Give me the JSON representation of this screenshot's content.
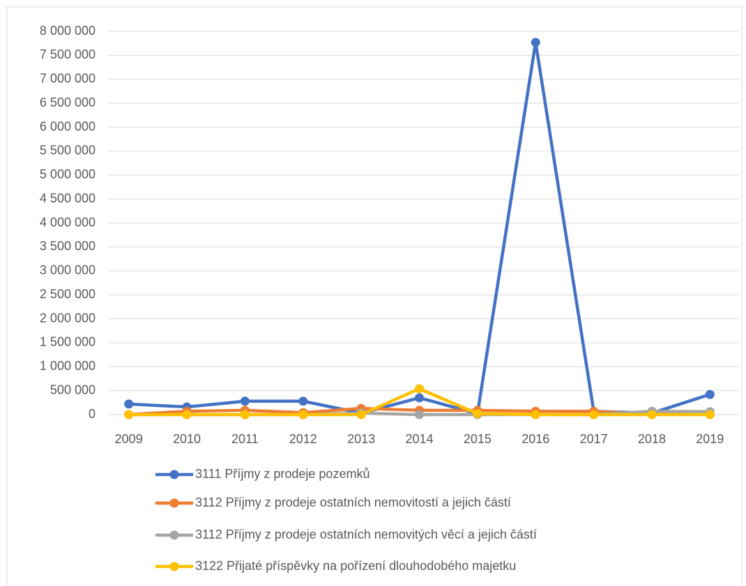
{
  "chart_data": {
    "type": "line",
    "categories": [
      "2009",
      "2010",
      "2011",
      "2012",
      "2013",
      "2014",
      "2015",
      "2016",
      "2017",
      "2018",
      "2019"
    ],
    "series": [
      {
        "name": "3111 Příjmy z prodeje pozemků",
        "color": "#4472c4",
        "values": [
          220000,
          160000,
          280000,
          280000,
          30000,
          350000,
          20000,
          7770000,
          70000,
          30000,
          420000
        ]
      },
      {
        "name": "3112 Příjmy z prodeje ostatních nemovitostí a jejich částí",
        "color": "#ed7d31",
        "values": [
          0,
          70000,
          90000,
          40000,
          130000,
          90000,
          90000,
          70000,
          70000,
          10000,
          10000
        ]
      },
      {
        "name": "3112 Příjmy z prodeje ostatních nemovitých věcí a jejich částí",
        "color": "#a5a5a5",
        "values": [
          0,
          0,
          0,
          0,
          30000,
          0,
          0,
          0,
          0,
          70000,
          60000
        ]
      },
      {
        "name": "3122 Přijaté příspěvky na pořízení dlouhodobého majetku",
        "color": "#ffc000",
        "values": [
          0,
          0,
          0,
          0,
          0,
          540000,
          20000,
          0,
          0,
          0,
          0
        ]
      }
    ],
    "ylim": [
      0,
      8000000
    ],
    "yticks": [
      0,
      {
        "value": 500000,
        "label": "500 000"
      },
      {
        "value": 1000000,
        "label": "1 000 000"
      },
      {
        "value": 1500000,
        "label": "1 500 000"
      },
      {
        "value": 2000000,
        "label": "2 000 000"
      },
      {
        "value": 2500000,
        "label": "2 500 000"
      },
      {
        "value": 3000000,
        "label": "3 000 000"
      },
      {
        "value": 3500000,
        "label": "3 500 000"
      },
      {
        "value": 4000000,
        "label": "4 000 000"
      },
      {
        "value": 4500000,
        "label": "4 500 000"
      },
      {
        "value": 5000000,
        "label": "5 000 000"
      },
      {
        "value": 5500000,
        "label": "5 500 000"
      },
      {
        "value": 6000000,
        "label": "6 000 000"
      },
      {
        "value": 6500000,
        "label": "6 500 000"
      },
      {
        "value": 7000000,
        "label": "7 000 000"
      },
      {
        "value": 7500000,
        "label": "7 500 000"
      },
      {
        "value": 8000000,
        "label": "8 000 000"
      }
    ],
    "grid": true,
    "legend": "bottom"
  }
}
